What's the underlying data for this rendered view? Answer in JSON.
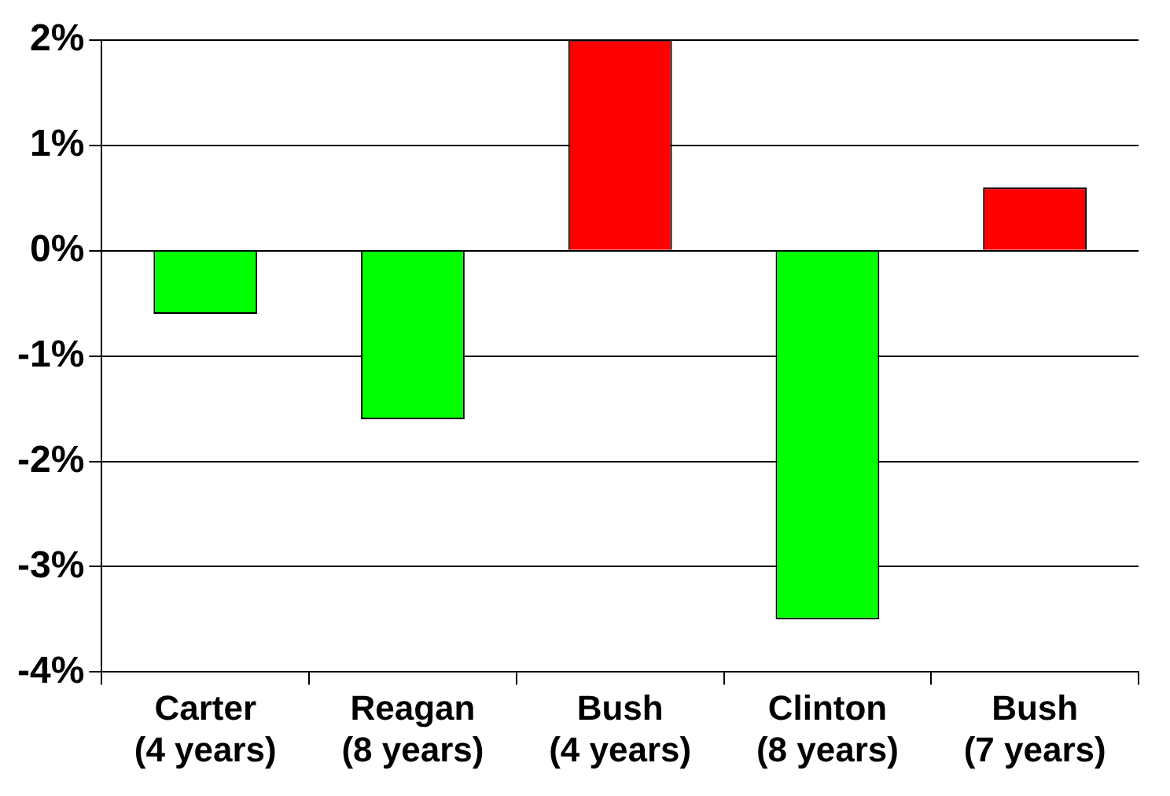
{
  "chart_data": {
    "type": "bar",
    "categories": [
      "Carter\n(4 years)",
      "Reagan\n(8 years)",
      "Bush\n(4 years)",
      "Clinton\n(8 years)",
      "Bush\n(7 years)"
    ],
    "values": [
      -0.6,
      -1.6,
      2.0,
      -3.5,
      0.6
    ],
    "colors": [
      "#00ff00",
      "#00ff00",
      "#ff0000",
      "#00ff00",
      "#ff0000"
    ],
    "ylim": [
      -4,
      2
    ],
    "yticks": [
      {
        "value": -4,
        "label": "-4%"
      },
      {
        "value": -3,
        "label": "-3%"
      },
      {
        "value": -2,
        "label": "-2%"
      },
      {
        "value": -1,
        "label": "-1%"
      },
      {
        "value": 0,
        "label": "0%"
      },
      {
        "value": 1,
        "label": "1%"
      },
      {
        "value": 2,
        "label": "2%"
      }
    ],
    "grid": "y"
  }
}
